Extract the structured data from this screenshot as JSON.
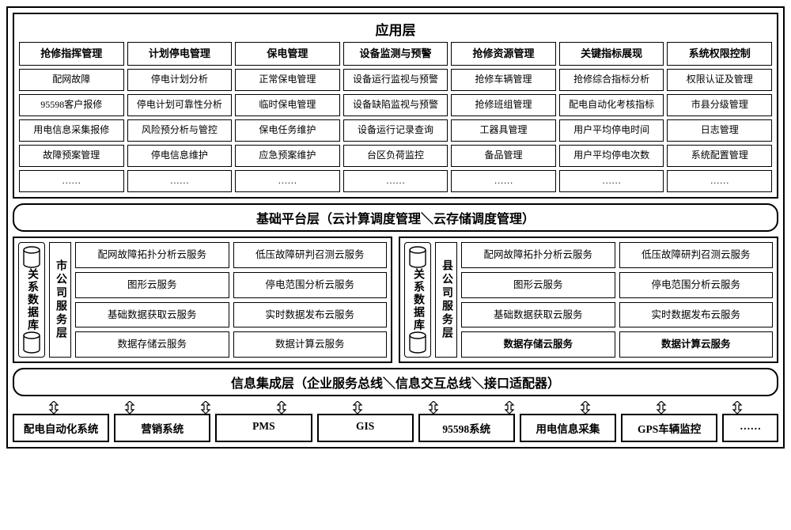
{
  "app_layer": {
    "title": "应用层",
    "columns": [
      {
        "header": "抢修指挥管理",
        "rows": [
          "配网故障",
          "95598客户报修",
          "用电信息采集报修",
          "故障预案管理",
          "……"
        ]
      },
      {
        "header": "计划停电管理",
        "rows": [
          "停电计划分析",
          "停电计划可靠性分析",
          "风险预分析与管控",
          "停电信息维护",
          "……"
        ]
      },
      {
        "header": "保电管理",
        "rows": [
          "正常保电管理",
          "临时保电管理",
          "保电任务维护",
          "应急预案维护",
          "……"
        ]
      },
      {
        "header": "设备监测与预警",
        "rows": [
          "设备运行监视与预警",
          "设备缺陷监视与预警",
          "设备运行记录查询",
          "台区负荷监控",
          "……"
        ]
      },
      {
        "header": "抢修资源管理",
        "rows": [
          "抢修车辆管理",
          "抢修班组管理",
          "工器具管理",
          "备品管理",
          "……"
        ]
      },
      {
        "header": "关键指标展现",
        "rows": [
          "抢修综合指标分析",
          "配电自动化考核指标",
          "用户平均停电时间",
          "用户平均停电次数",
          "……"
        ]
      },
      {
        "header": "系统权限控制",
        "rows": [
          "权限认证及管理",
          "市县分级管理",
          "日志管理",
          "系统配置管理",
          "……"
        ]
      }
    ]
  },
  "platform_layer": {
    "title": "基础平台层（云计算调度管理＼云存储调度管理）"
  },
  "companies": [
    {
      "db_label": "关系数据库",
      "svc_label": "市公司服务层",
      "services": [
        [
          "配网故障拓扑分析云服务",
          "低压故障研判召测云服务"
        ],
        [
          "图形云服务",
          "停电范围分析云服务"
        ],
        [
          "基础数据获取云服务",
          "实时数据发布云服务"
        ],
        [
          "数据存储云服务",
          "数据计算云服务"
        ]
      ],
      "bold_last": false
    },
    {
      "db_label": "关系数据库",
      "svc_label": "县公司服务层",
      "services": [
        [
          "配网故障拓扑分析云服务",
          "低压故障研判召测云服务"
        ],
        [
          "图形云服务",
          "停电范围分析云服务"
        ],
        [
          "基础数据获取云服务",
          "实时数据发布云服务"
        ],
        [
          "数据存储云服务",
          "数据计算云服务"
        ]
      ],
      "bold_last": true
    }
  ],
  "integration_layer": {
    "title": "信息集成层（企业服务总线＼信息交互总线＼接口适配器）"
  },
  "systems": [
    "配电自动化系统",
    "营销系统",
    "PMS",
    "GIS",
    "95598系统",
    "用电信息采集",
    "GPS车辆监控",
    "……"
  ],
  "style": {
    "border_color": "#000000",
    "bg_color": "#ffffff",
    "arrow_count": 10
  }
}
